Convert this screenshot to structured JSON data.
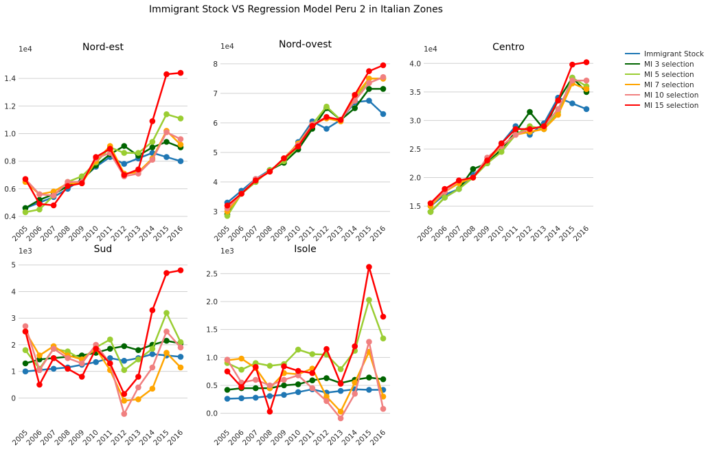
{
  "title": "Immigrant Stock VS Regression Model Peru 2 in Italian Zones",
  "legend": {
    "placement": "right, outside plots",
    "entries": [
      {
        "label": "Immigrant Stock",
        "color": "#1f77b4"
      },
      {
        "label": "MI 3 selection",
        "color": "#006400"
      },
      {
        "label": "MI 5 selection",
        "color": "#9acd32"
      },
      {
        "label": "MI 7 selection",
        "color": "#ffa500"
      },
      {
        "label": "MI 10 selection",
        "color": "#f08080"
      },
      {
        "label": "MI 15 selection",
        "color": "#ff0000"
      }
    ]
  },
  "chart_data": [
    {
      "type": "line",
      "title": "Nord-est",
      "multiplier": "1e4",
      "x": [
        "2005",
        "2006",
        "2007",
        "2008",
        "2009",
        "2010",
        "2011",
        "2012",
        "2013",
        "2014",
        "2015",
        "2016"
      ],
      "yticks": [
        "0.4",
        "0.6",
        "0.8",
        "1.0",
        "1.2",
        "1.4"
      ],
      "ylim": [
        0.35,
        1.55
      ],
      "grid": true,
      "series": [
        {
          "name": "Immigrant Stock",
          "values": [
            0.46,
            0.5,
            0.54,
            0.6,
            0.67,
            0.76,
            0.83,
            0.78,
            0.82,
            0.86,
            0.83,
            0.8
          ]
        },
        {
          "name": "MI 3 selection",
          "values": [
            0.46,
            0.52,
            0.56,
            0.62,
            0.66,
            0.77,
            0.85,
            0.91,
            0.84,
            0.9,
            0.94,
            0.9
          ]
        },
        {
          "name": "MI 5 selection",
          "values": [
            0.43,
            0.45,
            0.55,
            0.65,
            0.69,
            0.79,
            0.9,
            0.86,
            0.86,
            0.94,
            1.14,
            1.11
          ]
        },
        {
          "name": "MI 7 selection",
          "values": [
            0.65,
            0.56,
            0.58,
            0.64,
            0.64,
            0.8,
            0.91,
            0.71,
            0.72,
            0.82,
            1.02,
            0.92
          ]
        },
        {
          "name": "MI 10 selection",
          "values": [
            0.67,
            0.56,
            0.55,
            0.65,
            0.65,
            0.82,
            0.86,
            0.69,
            0.71,
            0.81,
            1.01,
            0.96
          ]
        },
        {
          "name": "MI 15 selection",
          "values": [
            0.67,
            0.49,
            0.48,
            0.62,
            0.64,
            0.83,
            0.89,
            0.7,
            0.74,
            1.09,
            1.43,
            1.44
          ]
        }
      ]
    },
    {
      "type": "line",
      "title": "Nord-ovest",
      "multiplier": "1e4",
      "x": [
        "2005",
        "2006",
        "2007",
        "2008",
        "2009",
        "2010",
        "2011",
        "2012",
        "2013",
        "2014",
        "2015",
        "2016"
      ],
      "yticks": [
        "3",
        "4",
        "5",
        "6",
        "7",
        "8"
      ],
      "ylim": [
        2.6,
        8.3
      ],
      "grid": true,
      "series": [
        {
          "name": "Immigrant Stock",
          "values": [
            3.3,
            3.7,
            4.1,
            4.4,
            4.7,
            5.35,
            6.05,
            5.8,
            6.1,
            6.7,
            6.75,
            6.3
          ]
        },
        {
          "name": "MI 3 selection",
          "values": [
            2.9,
            3.6,
            4.0,
            4.4,
            4.65,
            5.1,
            5.8,
            6.5,
            6.1,
            6.5,
            7.15,
            7.15
          ]
        },
        {
          "name": "MI 5 selection",
          "values": [
            2.85,
            3.6,
            4.0,
            4.4,
            4.7,
            5.2,
            5.95,
            6.55,
            6.1,
            6.75,
            7.5,
            7.5
          ]
        },
        {
          "name": "MI 7 selection",
          "values": [
            3.0,
            3.6,
            4.05,
            4.35,
            4.8,
            5.3,
            5.95,
            6.15,
            6.05,
            6.9,
            7.5,
            7.5
          ]
        },
        {
          "name": "MI 10 selection",
          "values": [
            3.1,
            3.6,
            4.1,
            4.35,
            4.8,
            5.25,
            5.95,
            6.2,
            6.1,
            6.75,
            7.35,
            7.55
          ]
        },
        {
          "name": "MI 15 selection",
          "values": [
            3.2,
            3.6,
            4.05,
            4.35,
            4.8,
            5.2,
            5.9,
            6.2,
            6.1,
            6.95,
            7.75,
            7.95
          ]
        }
      ]
    },
    {
      "type": "line",
      "title": "Centro",
      "multiplier": "1e4",
      "x": [
        "2005",
        "2006",
        "2007",
        "2008",
        "2009",
        "2010",
        "2011",
        "2012",
        "2013",
        "2014",
        "2015",
        "2016"
      ],
      "yticks": [
        "1.5",
        "2.0",
        "2.5",
        "3.0",
        "3.5",
        "4.0"
      ],
      "ylim": [
        1.2,
        4.1
      ],
      "grid": true,
      "series": [
        {
          "name": "Immigrant Stock",
          "values": [
            1.5,
            1.7,
            1.8,
            2.05,
            2.25,
            2.6,
            2.9,
            2.75,
            2.95,
            3.4,
            3.3,
            3.2
          ]
        },
        {
          "name": "MI 3 selection",
          "values": [
            1.4,
            1.65,
            1.8,
            2.15,
            2.25,
            2.5,
            2.8,
            3.15,
            2.85,
            3.35,
            3.75,
            3.5
          ]
        },
        {
          "name": "MI 5 selection",
          "values": [
            1.4,
            1.65,
            1.8,
            2.0,
            2.25,
            2.45,
            2.75,
            2.9,
            2.85,
            3.15,
            3.75,
            3.6
          ]
        },
        {
          "name": "MI 7 selection",
          "values": [
            1.5,
            1.75,
            1.9,
            2.0,
            2.3,
            2.55,
            2.75,
            2.8,
            2.85,
            3.1,
            3.65,
            3.55
          ]
        },
        {
          "name": "MI 10 selection",
          "values": [
            1.55,
            1.75,
            1.95,
            2.0,
            2.35,
            2.55,
            2.75,
            2.85,
            2.9,
            3.2,
            3.7,
            3.7
          ]
        },
        {
          "name": "MI 15 selection",
          "values": [
            1.55,
            1.8,
            1.95,
            2.0,
            2.3,
            2.6,
            2.85,
            2.85,
            2.9,
            3.35,
            3.98,
            4.02
          ]
        }
      ]
    },
    {
      "type": "line",
      "title": "Sud",
      "multiplier": "1e3",
      "x": [
        "2005",
        "2006",
        "2007",
        "2008",
        "2009",
        "2010",
        "2011",
        "2012",
        "2013",
        "2014",
        "2015",
        "2016"
      ],
      "yticks": [
        "0",
        "1",
        "2",
        "3",
        "4",
        "5"
      ],
      "ylim": [
        -1.1,
        5.2
      ],
      "grid": true,
      "series": [
        {
          "name": "Immigrant Stock",
          "values": [
            1.0,
            1.05,
            1.1,
            1.15,
            1.25,
            1.35,
            1.5,
            1.4,
            1.5,
            1.65,
            1.6,
            1.55
          ]
        },
        {
          "name": "MI 3 selection",
          "values": [
            1.3,
            1.45,
            1.5,
            1.55,
            1.6,
            1.7,
            1.85,
            1.95,
            1.8,
            2.0,
            2.15,
            2.05
          ]
        },
        {
          "name": "MI 5 selection",
          "values": [
            1.8,
            1.1,
            1.85,
            1.75,
            1.45,
            1.9,
            2.2,
            1.05,
            1.45,
            1.85,
            3.2,
            2.1
          ]
        },
        {
          "name": "MI 7 selection",
          "values": [
            2.5,
            1.6,
            1.95,
            1.6,
            1.45,
            1.85,
            1.05,
            -0.1,
            -0.05,
            0.35,
            1.7,
            1.15
          ]
        },
        {
          "name": "MI 10 selection",
          "values": [
            2.7,
            1.05,
            1.85,
            1.5,
            1.3,
            2.0,
            1.3,
            -0.6,
            0.4,
            1.15,
            2.5,
            1.9
          ]
        },
        {
          "name": "MI 15 selection",
          "values": [
            2.5,
            0.5,
            1.5,
            1.1,
            0.8,
            1.85,
            1.3,
            0.15,
            0.8,
            3.3,
            4.7,
            4.8
          ]
        }
      ]
    },
    {
      "type": "line",
      "title": "Isole",
      "multiplier": "1e3",
      "x": [
        "2005",
        "2006",
        "2007",
        "2008",
        "2009",
        "2010",
        "2011",
        "2012",
        "2013",
        "2014",
        "2015",
        "2016"
      ],
      "yticks": [
        "0.0",
        "0.5",
        "1.0",
        "1.5",
        "2.0",
        "2.5"
      ],
      "ylim": [
        -0.25,
        2.75
      ],
      "grid": true,
      "series": [
        {
          "name": "Immigrant Stock",
          "values": [
            0.26,
            0.27,
            0.28,
            0.31,
            0.33,
            0.38,
            0.43,
            0.37,
            0.4,
            0.43,
            0.42,
            0.42
          ]
        },
        {
          "name": "MI 3 selection",
          "values": [
            0.42,
            0.45,
            0.45,
            0.45,
            0.5,
            0.52,
            0.59,
            0.63,
            0.54,
            0.6,
            0.64,
            0.61
          ]
        },
        {
          "name": "MI 5 selection",
          "values": [
            0.9,
            0.78,
            0.9,
            0.85,
            0.88,
            1.14,
            1.06,
            1.05,
            0.79,
            1.12,
            2.03,
            1.34
          ]
        },
        {
          "name": "MI 7 selection",
          "values": [
            0.95,
            0.98,
            0.81,
            0.45,
            0.72,
            0.7,
            0.8,
            0.3,
            0.03,
            0.55,
            1.1,
            0.3
          ]
        },
        {
          "name": "MI 10 selection",
          "values": [
            0.96,
            0.55,
            0.6,
            0.5,
            0.6,
            0.68,
            0.45,
            0.22,
            -0.09,
            0.35,
            1.28,
            0.08
          ]
        },
        {
          "name": "MI 15 selection",
          "values": [
            0.75,
            0.47,
            0.83,
            0.03,
            0.84,
            0.76,
            0.72,
            1.15,
            0.53,
            1.2,
            2.62,
            1.73
          ]
        }
      ]
    }
  ]
}
